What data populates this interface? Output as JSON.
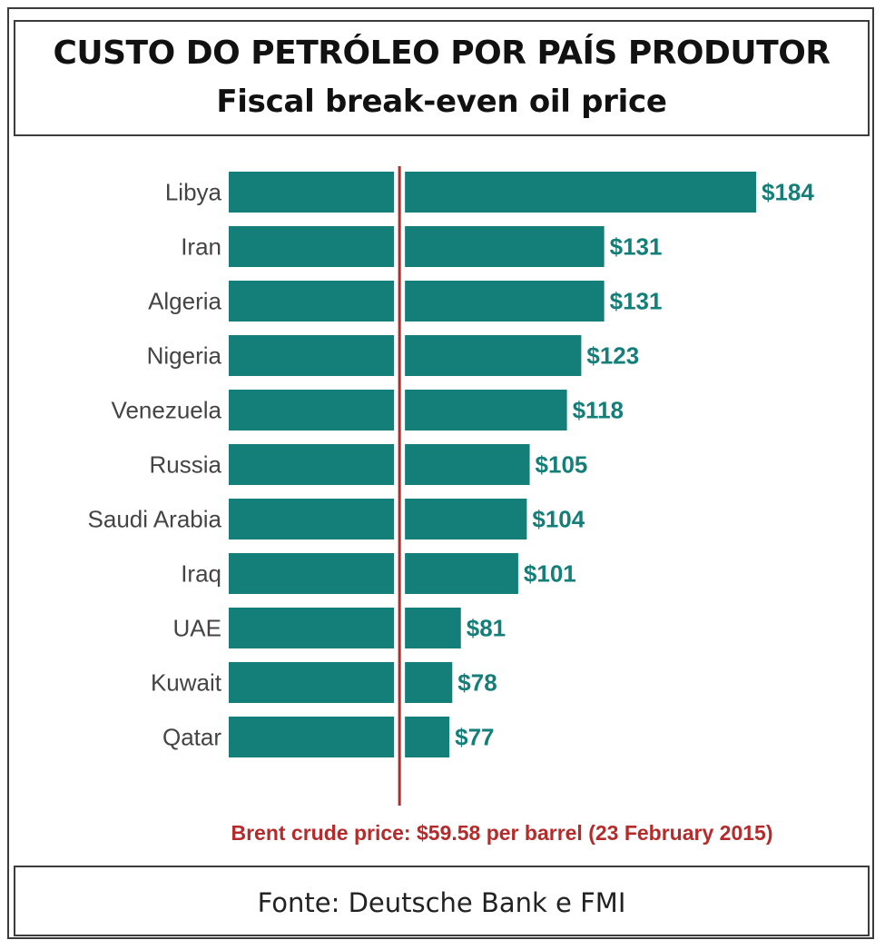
{
  "header": {
    "title": "CUSTO DO PETRÓLEO POR PAÍS PRODUTOR",
    "subtitle": "Fiscal break-even oil price"
  },
  "footer": {
    "source": "Fonte: Deutsche Bank e FMI"
  },
  "chart_data": {
    "type": "bar",
    "orientation": "horizontal",
    "categories": [
      "Libya",
      "Iran",
      "Algeria",
      "Nigeria",
      "Venezuela",
      "Russia",
      "Saudi Arabia",
      "Iraq",
      "UAE",
      "Kuwait",
      "Qatar"
    ],
    "values": [
      184,
      131,
      131,
      123,
      118,
      105,
      104,
      101,
      81,
      78,
      77
    ],
    "value_labels": [
      "$184",
      "$131",
      "$131",
      "$123",
      "$118",
      "$105",
      "$104",
      "$101",
      "$81",
      "$78",
      "$77"
    ],
    "reference_line": {
      "value": 59.58,
      "label": "Brent crude price: $59.58 per barrel (23 February 2015)",
      "color": "#b52b2b"
    },
    "bar_color": "#137f78",
    "label_color": "#137f78",
    "xlim": [
      0,
      184
    ],
    "grid": false
  }
}
